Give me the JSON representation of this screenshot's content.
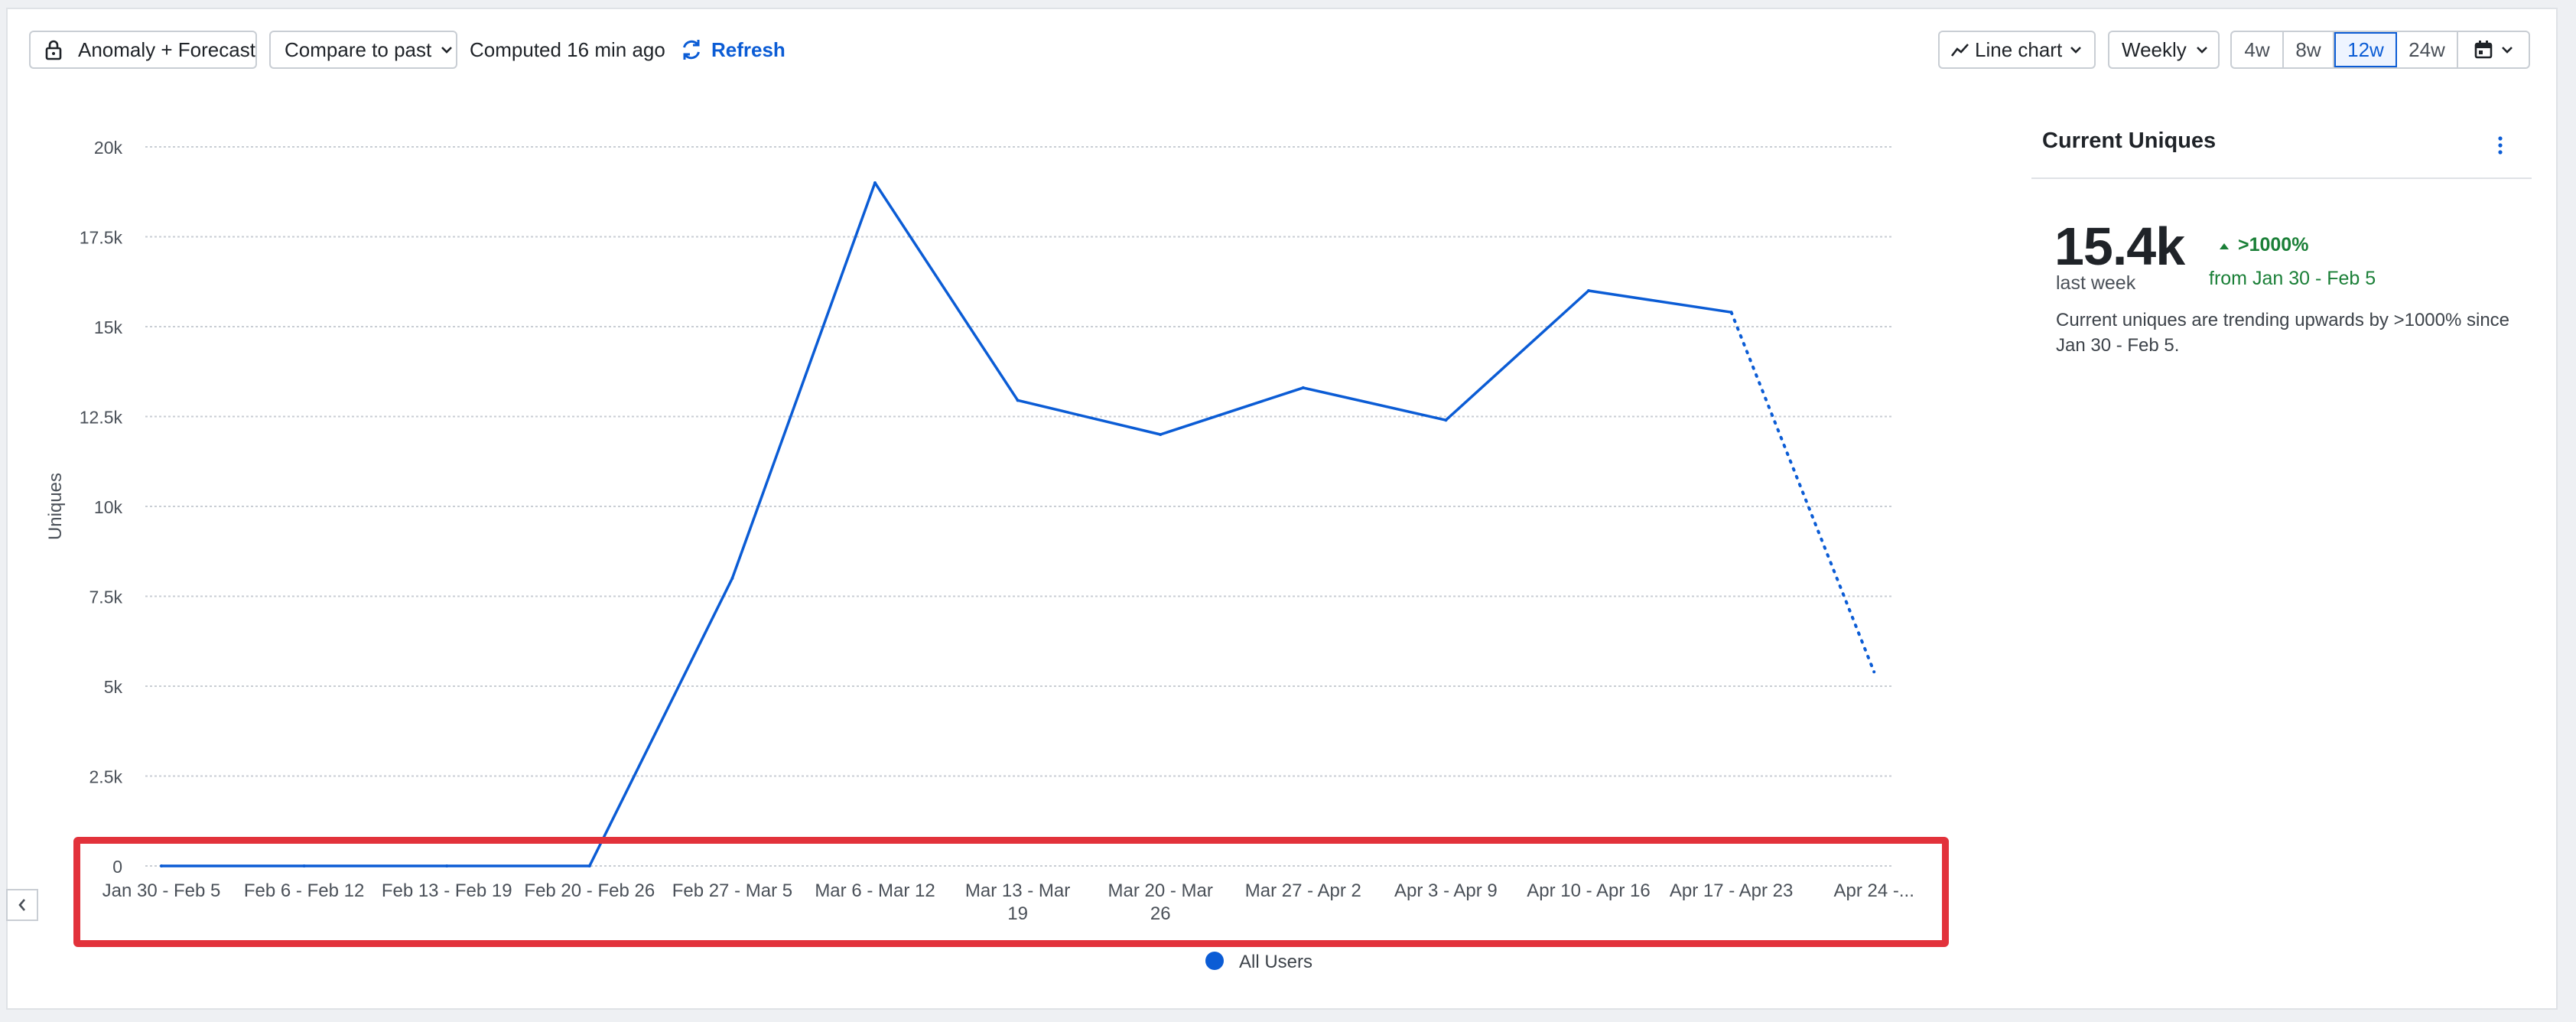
{
  "toolbar": {
    "anomaly_label": "Anomaly + Forecast",
    "compare_label": "Compare to past",
    "computed_text": "Computed 16 min ago",
    "refresh_label": "Refresh",
    "chart_type_label": "Line chart",
    "interval_label": "Weekly",
    "ranges": [
      "4w",
      "8w",
      "12w",
      "24w"
    ],
    "active_range": "12w",
    "icons": {
      "anomaly": "lock-icon",
      "refresh": "refresh-icon",
      "chart_type": "line-chart-icon",
      "calendar": "calendar-icon",
      "dropdown": "chevron-down-icon"
    }
  },
  "summary": {
    "title": "Current Uniques",
    "value": "15.4k",
    "value_sub": "last week",
    "delta": ">1000%",
    "delta_from": "from Jan 30 - Feb 5",
    "description": "Current uniques are trending upwards by >1000% since Jan 30 - Feb 5.",
    "icons": {
      "menu": "more-vertical-icon",
      "delta": "arrow-up-icon"
    }
  },
  "chart_data": {
    "type": "line",
    "ylabel": "Uniques",
    "ylim": [
      0,
      20000
    ],
    "yticks": [
      0,
      2500,
      5000,
      7500,
      10000,
      12500,
      15000,
      17500,
      20000
    ],
    "ytick_labels": [
      "0",
      "2.5k",
      "5k",
      "7.5k",
      "10k",
      "12.5k",
      "15k",
      "17.5k",
      "20k"
    ],
    "categories": [
      "Jan 30 - Feb 5",
      "Feb 6 - Feb 12",
      "Feb 13 - Feb 19",
      "Feb 20 - Feb 26",
      "Feb 27 - Mar 5",
      "Mar 6 - Mar 12",
      "Mar 13 - Mar 19",
      "Mar 20 - Mar 26",
      "Mar 27 - Apr 2",
      "Apr 3 - Apr 9",
      "Apr 10 - Apr 16",
      "Apr 17 - Apr 23",
      "Apr 24 -..."
    ],
    "category_labels": [
      [
        "Jan 30 - Feb 5"
      ],
      [
        "Feb 6 - Feb 12"
      ],
      [
        "Feb 13 - Feb 19"
      ],
      [
        "Feb 20 - Feb 26"
      ],
      [
        "Feb 27 - Mar 5"
      ],
      [
        "Mar 6 - Mar 12"
      ],
      [
        "Mar 13 - Mar",
        "19"
      ],
      [
        "Mar 20 - Mar",
        "26"
      ],
      [
        "Mar 27 - Apr 2"
      ],
      [
        "Apr 3 - Apr 9"
      ],
      [
        "Apr 10 - Apr 16"
      ],
      [
        "Apr 17 - Apr 23"
      ],
      [
        "Apr 24 -..."
      ]
    ],
    "series": [
      {
        "name": "All Users",
        "color": "#0b5cd5",
        "values": [
          0,
          0,
          0,
          0,
          8000,
          19000,
          12950,
          12000,
          13300,
          12400,
          16000,
          15400,
          5400
        ],
        "partial_from_index": 11
      }
    ],
    "grid": true,
    "legend": "bottom-center"
  },
  "colors": {
    "accent": "#0b5cd5",
    "positive": "#1a7f37",
    "highlight": "#e2323b",
    "grid": "#c9ced4"
  }
}
